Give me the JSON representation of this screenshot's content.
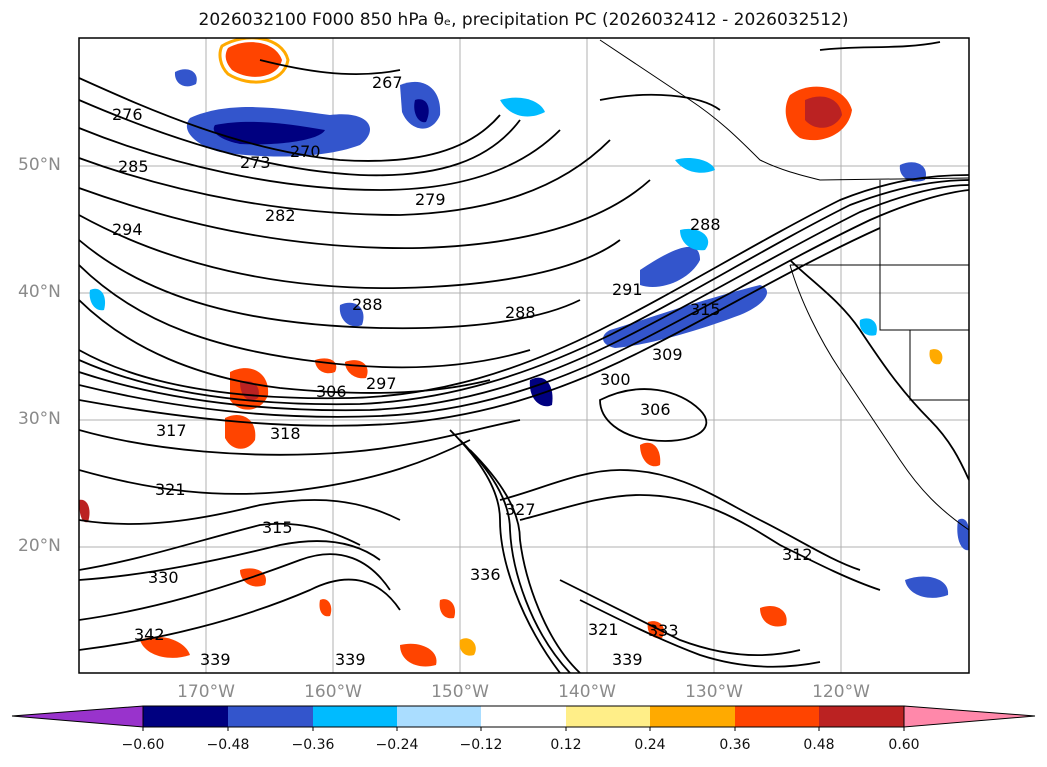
{
  "title": "2026032100 F000 850 hPa θₑ, precipitation PC (2026032412 - 2026032512)",
  "latitude_labels": [
    "50°N",
    "40°N",
    "30°N",
    "20°N"
  ],
  "longitude_labels": [
    "170°W",
    "160°W",
    "150°W",
    "140°W",
    "130°W",
    "120°W"
  ],
  "contour_labels": [
    "276",
    "273",
    "270",
    "267",
    "285",
    "282",
    "279",
    "294",
    "288",
    "288",
    "288",
    "291",
    "315",
    "309",
    "306",
    "306",
    "297",
    "300",
    "318",
    "317",
    "321",
    "315",
    "330",
    "339",
    "339",
    "336",
    "333",
    "321",
    "312",
    "327",
    "339",
    "342"
  ],
  "colorbar": {
    "colors": [
      "#9933cc",
      "#000080",
      "#3355cc",
      "#00bbff",
      "#aaddff",
      "#ffffff",
      "#ffee88",
      "#ffaa00",
      "#ff4400",
      "#bb2222",
      "#ff88aa"
    ],
    "tick_labels": [
      "−0.60",
      "−0.48",
      "−0.36",
      "−0.24",
      "−0.12",
      "0.12",
      "0.24",
      "0.36",
      "0.48",
      "0.60"
    ]
  }
}
